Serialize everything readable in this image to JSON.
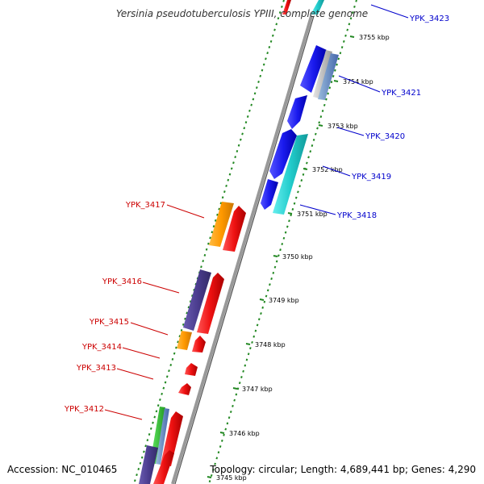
{
  "title": "Yersinia pseudotuberculosis YPIII, complete genome",
  "accession_text": "Accession: NC_010465",
  "topology_text": "Topology: circular; Length: 4,689,441 bp; Genes: 4,290",
  "kbp_labels": [
    "3755 kbp",
    "3754 kbp",
    "3753 kbp",
    "3752 kbp",
    "3751 kbp",
    "3750 kbp",
    "3749 kbp",
    "3748 kbp",
    "3747 kbp",
    "3746 kbp",
    "3745 kbp"
  ],
  "forward_genes": [
    {
      "name": "YPK_3423",
      "color": "#0000cc"
    },
    {
      "name": "YPK_3421",
      "color": "#0000cc"
    },
    {
      "name": "YPK_3420",
      "color": "#0000cc"
    },
    {
      "name": "YPK_3419",
      "color": "#0000cc"
    },
    {
      "name": "YPK_3418",
      "color": "#0000cc"
    }
  ],
  "reverse_genes": [
    {
      "name": "YPK_3417",
      "color": "#cc0000"
    },
    {
      "name": "YPK_3416",
      "color": "#cc0000"
    },
    {
      "name": "YPK_3415",
      "color": "#cc0000"
    },
    {
      "name": "YPK_3414",
      "color": "#cc0000"
    },
    {
      "name": "YPK_3413",
      "color": "#cc0000"
    },
    {
      "name": "YPK_3412",
      "color": "#cc0000"
    }
  ],
  "colors": {
    "cds_blue": "#1a1aee",
    "cds_red": "#ee1111",
    "cog_cyan": "#22cccc",
    "cog_orange": "#ff9900",
    "cog_purple": "#4b3d8f",
    "cog_green": "#33cc33",
    "cog_steel": "#6688bb",
    "backbone": "#999999",
    "tick_green": "#228822"
  }
}
